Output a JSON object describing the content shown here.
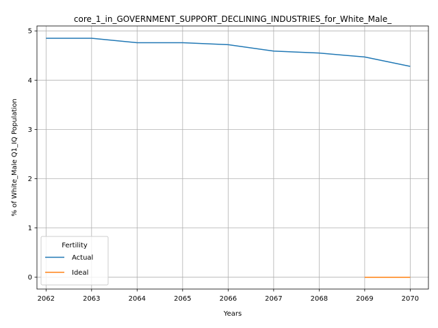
{
  "chart_data": {
    "type": "line",
    "title": "core_1_in_GOVERNMENT_SUPPORT_DECLINING_INDUSTRIES_for_White_Male_",
    "xlabel": "Years",
    "ylabel": "% of White_Male Q1_IQ Population",
    "x": [
      2062,
      2063,
      2064,
      2065,
      2066,
      2067,
      2068,
      2069,
      2070
    ],
    "xlim": [
      2061.8,
      2070.4
    ],
    "ylim": [
      -0.24,
      5.1
    ],
    "yticks": [
      0,
      1,
      2,
      3,
      4,
      5
    ],
    "grid": true,
    "legend": {
      "title": "Fertility",
      "placement": "lower-left"
    },
    "series": [
      {
        "name": "Actual",
        "color": "#1f77b4",
        "x": [
          2062,
          2063,
          2064,
          2065,
          2066,
          2067,
          2068,
          2069,
          2070
        ],
        "values": [
          4.85,
          4.85,
          4.76,
          4.76,
          4.72,
          4.59,
          4.55,
          4.47,
          4.28
        ]
      },
      {
        "name": "Ideal",
        "color": "#ff7f0e",
        "x": [
          2069,
          2070
        ],
        "values": [
          0.0,
          0.0
        ]
      }
    ]
  }
}
